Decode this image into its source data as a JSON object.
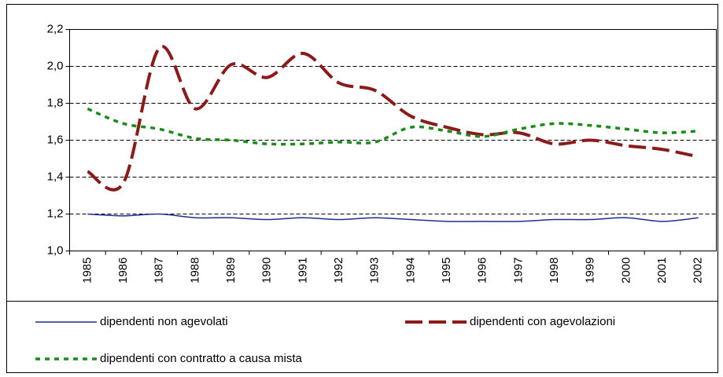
{
  "chart_data": {
    "type": "line",
    "categories": [
      "1985",
      "1986",
      "1987",
      "1988",
      "1989",
      "1990",
      "1991",
      "1992",
      "1993",
      "1994",
      "1995",
      "1996",
      "1997",
      "1998",
      "1999",
      "2000",
      "2001",
      "2002"
    ],
    "series": [
      {
        "name": "dipendenti non agevolati",
        "color": "#1f2d8f",
        "dash": "solid",
        "values": [
          1.2,
          1.19,
          1.2,
          1.18,
          1.18,
          1.17,
          1.18,
          1.17,
          1.18,
          1.17,
          1.16,
          1.16,
          1.16,
          1.17,
          1.17,
          1.18,
          1.16,
          1.18
        ]
      },
      {
        "name": "dipendenti con agevolazioni",
        "color": "#8b1a1a",
        "dash": "long",
        "values": [
          1.43,
          1.37,
          2.1,
          1.77,
          2.01,
          1.94,
          2.07,
          1.91,
          1.87,
          1.73,
          1.67,
          1.63,
          1.64,
          1.58,
          1.6,
          1.57,
          1.55,
          1.51
        ]
      },
      {
        "name": "dipendenti con contratto a causa mista",
        "color": "#1a8c1a",
        "dash": "dot",
        "values": [
          1.77,
          1.69,
          1.66,
          1.61,
          1.6,
          1.58,
          1.58,
          1.59,
          1.59,
          1.67,
          1.65,
          1.62,
          1.66,
          1.69,
          1.68,
          1.66,
          1.64,
          1.65
        ]
      }
    ],
    "ylim": [
      1.0,
      2.2
    ],
    "yticks": [
      {
        "value": 1.0,
        "label": "1,0"
      },
      {
        "value": 1.2,
        "label": "1,2"
      },
      {
        "value": 1.4,
        "label": "1,4"
      },
      {
        "value": 1.6,
        "label": "1,6"
      },
      {
        "value": 1.8,
        "label": "1,8"
      },
      {
        "value": 2.0,
        "label": "2,0"
      },
      {
        "value": 2.2,
        "label": "2,2"
      }
    ],
    "grid": true
  }
}
